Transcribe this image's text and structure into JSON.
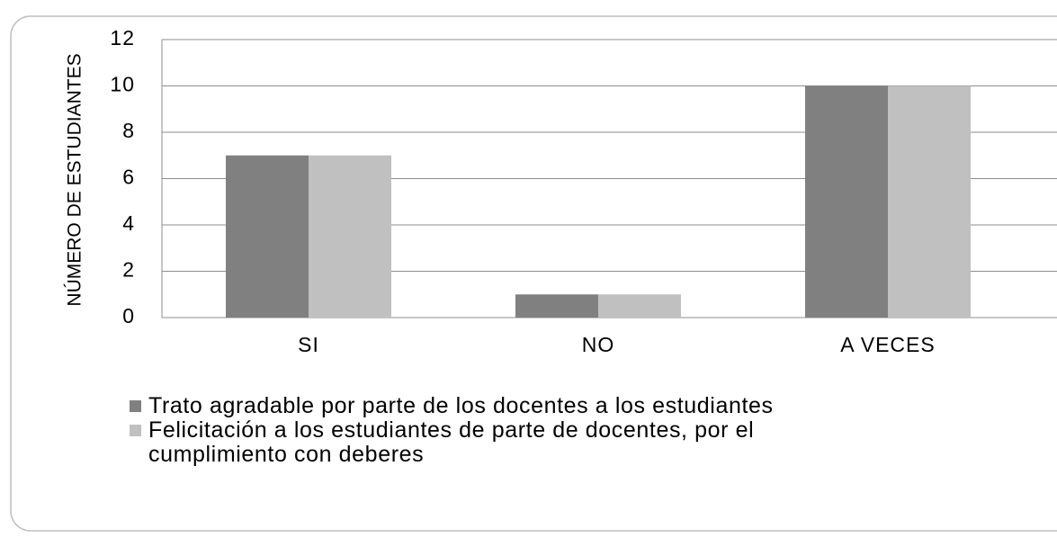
{
  "chart_data": {
    "type": "bar",
    "y_label": "NÚMERO DE ESTUDIANTES",
    "categories": [
      "SI",
      "NO",
      "A VECES"
    ],
    "series": [
      {
        "name": "Trato agradable por parte de los docentes a los estudiantes",
        "color": "#808080",
        "values": [
          7,
          1,
          10
        ]
      },
      {
        "name": "Felicitación a los estudiantes de parte de docentes, por el cumplimiento con deberes",
        "color": "#c0c0c0",
        "values": [
          7,
          1,
          10
        ]
      }
    ],
    "ylim": [
      0,
      12
    ],
    "yticks": [
      0,
      2,
      4,
      6,
      8,
      10,
      12
    ],
    "grid": true,
    "legend": "bottom"
  }
}
